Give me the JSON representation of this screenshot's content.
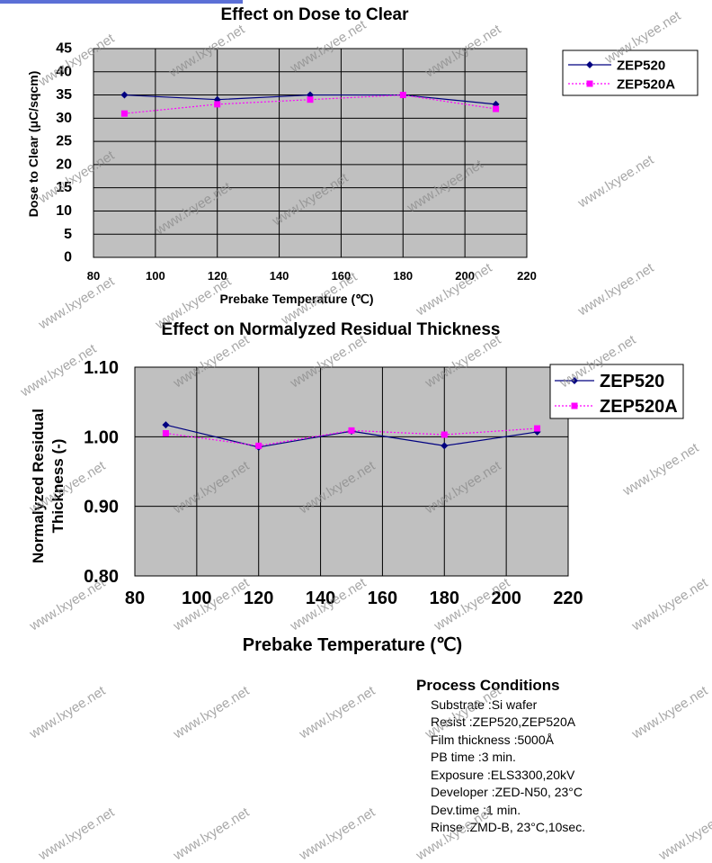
{
  "chart_data": [
    {
      "type": "line",
      "title": "Effect on Dose to Clear",
      "xlabel": "Prebake  Temperature   (℃)",
      "ylabel": "Dose  to  Clear  (μC/sqcm)",
      "xlim": [
        80,
        220
      ],
      "ylim": [
        0,
        45
      ],
      "x_ticks": [
        "80",
        "100",
        "120",
        "140",
        "160",
        "180",
        "200",
        "220"
      ],
      "y_ticks": [
        "0",
        "5",
        "10",
        "15",
        "20",
        "25",
        "30",
        "35",
        "40",
        "45"
      ],
      "x": [
        90,
        120,
        150,
        180,
        210
      ],
      "grid": true,
      "legend_position": "right",
      "series": [
        {
          "name": "ZEP520",
          "values": [
            35,
            34,
            35,
            35,
            33
          ],
          "color": "#000080",
          "style": "solid",
          "marker": "diamond"
        },
        {
          "name": "ZEP520A",
          "values": [
            31,
            33,
            34,
            35,
            32
          ],
          "color": "#ff00ff",
          "style": "dotted",
          "marker": "square"
        }
      ]
    },
    {
      "type": "line",
      "title": "Effect on Normalyzed Residual Thickness",
      "xlabel": "Prebake Temperature (℃)",
      "ylabel": "Normalyzed Residual Thickness  (-)",
      "xlim": [
        80,
        220
      ],
      "ylim": [
        0.8,
        1.1
      ],
      "x_ticks": [
        "80",
        "100",
        "120",
        "140",
        "160",
        "180",
        "200",
        "220"
      ],
      "y_ticks": [
        "0.80",
        "0.90",
        "1.00",
        "1.10"
      ],
      "x": [
        90,
        120,
        150,
        180,
        210
      ],
      "grid": true,
      "legend_position": "right",
      "series": [
        {
          "name": "ZEP520",
          "values": [
            1.017,
            0.985,
            1.008,
            0.987,
            1.007
          ],
          "color": "#000080",
          "style": "solid",
          "marker": "diamond"
        },
        {
          "name": "ZEP520A",
          "values": [
            1.005,
            0.987,
            1.009,
            1.003,
            1.012
          ],
          "color": "#ff00ff",
          "style": "dotted",
          "marker": "square"
        }
      ]
    }
  ],
  "process": {
    "title": "Process  Conditions",
    "lines": [
      "Substrate :Si wafer",
      "Resist :ZEP520,ZEP520A",
      "Film thickness :5000Å",
      "PB  time :3  min.",
      "Exposure :ELS3300,20kV",
      "Developer :ZED-N50,  23°C",
      "Dev.time :1  min.",
      "Rinse :ZMD-B,  23°C,10sec."
    ]
  },
  "watermark": "www.lxyee.net"
}
